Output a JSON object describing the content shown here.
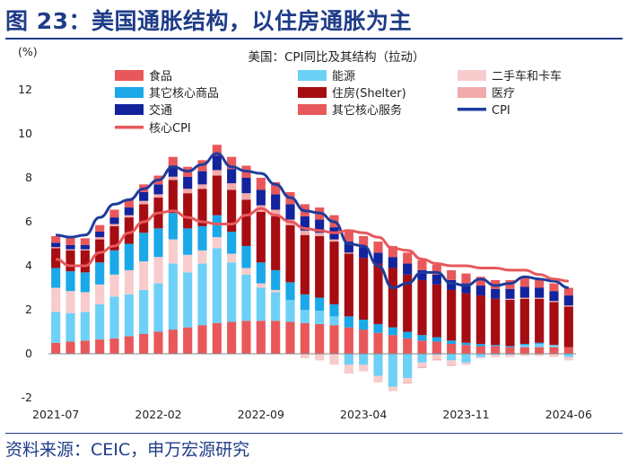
{
  "figure": {
    "title": "图 23：美国通胀结构，以住房通胀为主",
    "source": "资料来源：CEIC，申万宏源研究"
  },
  "chart_data": {
    "type": "bar",
    "stacked": true,
    "title": "美国：CPI同比及其结构（拉动）",
    "ylabel": "(%)",
    "xlabel": "",
    "ylim": [
      -2,
      12
    ],
    "yticks": [
      -2,
      0,
      2,
      4,
      6,
      8,
      10,
      12
    ],
    "xtick_labels": [
      "2021-07",
      "2022-02",
      "2022-09",
      "2023-04",
      "2023-11",
      "2024-06"
    ],
    "categories": [
      "2021-07",
      "2021-08",
      "2021-09",
      "2021-10",
      "2021-11",
      "2021-12",
      "2022-01",
      "2022-02",
      "2022-03",
      "2022-04",
      "2022-05",
      "2022-06",
      "2022-07",
      "2022-08",
      "2022-09",
      "2022-10",
      "2022-11",
      "2022-12",
      "2023-01",
      "2023-02",
      "2023-03",
      "2023-04",
      "2023-05",
      "2023-06",
      "2023-07",
      "2023-08",
      "2023-09",
      "2023-10",
      "2023-11",
      "2023-12",
      "2024-01",
      "2024-02",
      "2024-03",
      "2024-04",
      "2024-05",
      "2024-06"
    ],
    "series": [
      {
        "name": "食品",
        "color": "#e8585b",
        "values": [
          0.5,
          0.55,
          0.6,
          0.65,
          0.7,
          0.8,
          0.9,
          1.0,
          1.1,
          1.2,
          1.3,
          1.4,
          1.45,
          1.5,
          1.5,
          1.5,
          1.45,
          1.4,
          1.35,
          1.3,
          1.2,
          1.1,
          0.95,
          0.85,
          0.7,
          0.6,
          0.55,
          0.45,
          0.4,
          0.35,
          0.35,
          0.3,
          0.3,
          0.3,
          0.3,
          0.3
        ]
      },
      {
        "name": "能源",
        "color": "#6dd0f7",
        "values": [
          1.4,
          1.3,
          1.3,
          1.6,
          1.9,
          1.9,
          2.0,
          2.2,
          3.0,
          2.5,
          2.8,
          3.4,
          2.7,
          2.1,
          1.5,
          1.3,
          1.0,
          0.6,
          0.6,
          0.4,
          -0.5,
          -0.5,
          -1.0,
          -1.5,
          -1.1,
          -0.4,
          -0.05,
          -0.3,
          -0.4,
          -0.15,
          -0.05,
          -0.05,
          0.1,
          0.15,
          0.1,
          -0.15
        ]
      },
      {
        "name": "二手车和卡车",
        "color": "#f8cccc",
        "values": [
          1.1,
          1.0,
          0.9,
          0.9,
          1.0,
          1.1,
          1.3,
          1.2,
          1.1,
          0.8,
          0.6,
          0.5,
          0.4,
          0.3,
          0.2,
          0.1,
          0.0,
          -0.2,
          -0.3,
          -0.5,
          -0.4,
          -0.3,
          -0.3,
          -0.2,
          -0.2,
          -0.2,
          -0.2,
          -0.2,
          -0.1,
          -0.05,
          -0.1,
          -0.1,
          -0.1,
          -0.1,
          -0.15,
          -0.15
        ]
      },
      {
        "name": "其它核心商品",
        "color": "#1aa8e8",
        "values": [
          0.9,
          0.9,
          0.9,
          1.0,
          1.1,
          1.2,
          1.3,
          1.3,
          1.2,
          1.2,
          1.1,
          1.0,
          1.0,
          1.0,
          0.95,
          0.9,
          0.8,
          0.7,
          0.6,
          0.55,
          0.5,
          0.45,
          0.4,
          0.35,
          0.3,
          0.25,
          0.2,
          0.15,
          0.1,
          0.1,
          0.05,
          0.05,
          0.05,
          0.05,
          0.0,
          0.0
        ]
      },
      {
        "name": "住房(Shelter)",
        "color": "#a50d12",
        "values": [
          0.9,
          0.95,
          1.0,
          1.05,
          1.1,
          1.2,
          1.3,
          1.4,
          1.5,
          1.6,
          1.7,
          1.8,
          1.9,
          2.1,
          2.3,
          2.45,
          2.6,
          2.7,
          2.8,
          2.85,
          2.85,
          2.8,
          2.75,
          2.7,
          2.6,
          2.5,
          2.4,
          2.3,
          2.25,
          2.2,
          2.1,
          2.1,
          2.05,
          2.0,
          1.95,
          1.85
        ]
      },
      {
        "name": "医疗",
        "color": "#f2aaaa",
        "values": [
          0.05,
          0.05,
          0.05,
          0.1,
          0.1,
          0.1,
          0.15,
          0.15,
          0.15,
          0.2,
          0.2,
          0.25,
          0.3,
          0.3,
          0.3,
          0.3,
          0.25,
          0.2,
          0.15,
          0.1,
          0.05,
          0.0,
          0.0,
          0.0,
          -0.05,
          -0.05,
          -0.05,
          -0.05,
          0.0,
          0.0,
          0.0,
          0.05,
          0.05,
          0.05,
          0.05,
          0.05
        ]
      },
      {
        "name": "交通",
        "color": "#12239c",
        "values": [
          0.2,
          0.2,
          0.2,
          0.25,
          0.3,
          0.35,
          0.4,
          0.45,
          0.5,
          0.55,
          0.6,
          0.65,
          0.65,
          0.7,
          0.7,
          0.7,
          0.7,
          0.65,
          0.6,
          0.55,
          0.5,
          0.5,
          0.5,
          0.5,
          0.5,
          0.45,
          0.45,
          0.45,
          0.45,
          0.45,
          0.45,
          0.45,
          0.5,
          0.45,
          0.45,
          0.45
        ]
      },
      {
        "name": "其它核心服务",
        "color": "#e8585b",
        "values": [
          0.3,
          0.3,
          0.3,
          0.3,
          0.35,
          0.35,
          0.35,
          0.4,
          0.4,
          0.45,
          0.5,
          0.5,
          0.55,
          0.55,
          0.55,
          0.55,
          0.55,
          0.55,
          0.55,
          0.55,
          0.55,
          0.5,
          0.5,
          0.5,
          0.5,
          0.45,
          0.45,
          0.45,
          0.45,
          0.4,
          0.4,
          0.4,
          0.4,
          0.35,
          0.35,
          0.35
        ]
      }
    ],
    "lines": [
      {
        "name": "CPI",
        "color": "#1f3c9c",
        "values": [
          5.4,
          5.3,
          5.4,
          6.2,
          6.8,
          7.0,
          7.5,
          7.9,
          8.5,
          8.3,
          8.6,
          9.1,
          8.5,
          8.3,
          8.2,
          7.7,
          7.1,
          6.5,
          6.4,
          6.0,
          5.0,
          4.9,
          4.0,
          3.0,
          3.2,
          3.7,
          3.7,
          3.2,
          3.1,
          3.4,
          3.1,
          3.2,
          3.5,
          3.4,
          3.3,
          3.0
        ]
      },
      {
        "name": "核心CPI",
        "color": "#e8585b",
        "values": [
          4.3,
          4.0,
          4.0,
          4.6,
          4.9,
          5.5,
          6.0,
          6.4,
          6.5,
          6.2,
          6.0,
          5.9,
          5.9,
          6.3,
          6.6,
          6.3,
          6.0,
          5.7,
          5.6,
          5.5,
          5.6,
          5.5,
          5.3,
          4.8,
          4.7,
          4.3,
          4.1,
          4.0,
          4.0,
          3.9,
          3.9,
          3.8,
          3.8,
          3.6,
          3.4,
          3.3
        ]
      }
    ],
    "legend_order": [
      "食品",
      "能源",
      "二手车和卡车",
      "其它核心商品",
      "住房(Shelter)",
      "医疗",
      "交通",
      "其它核心服务",
      "CPI",
      "核心CPI"
    ]
  }
}
